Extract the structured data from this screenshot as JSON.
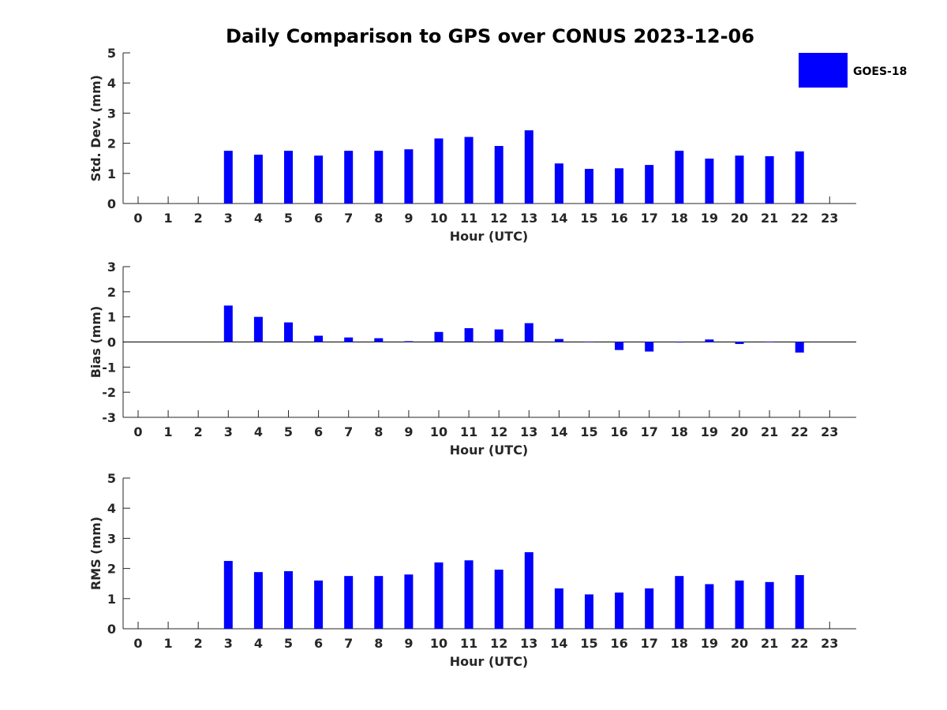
{
  "title": "Daily Comparison to GPS over CONUS 2023-12-06",
  "legend": {
    "label": "GOES-18",
    "color": "#0000ff"
  },
  "chart_data": [
    {
      "type": "bar",
      "name": "std-dev",
      "xlabel": "Hour (UTC)",
      "ylabel": "Std. Dev. (mm)",
      "ylim": [
        0,
        5
      ],
      "yticks": [
        0,
        1,
        2,
        3,
        4,
        5
      ],
      "categories": [
        0,
        1,
        2,
        3,
        4,
        5,
        6,
        7,
        8,
        9,
        10,
        11,
        12,
        13,
        14,
        15,
        16,
        17,
        18,
        19,
        20,
        21,
        22,
        23
      ],
      "series": [
        {
          "name": "GOES-18",
          "color": "#0000ff",
          "values": [
            null,
            null,
            null,
            1.75,
            1.62,
            1.75,
            1.59,
            1.75,
            1.75,
            1.8,
            2.16,
            2.21,
            1.91,
            2.43,
            1.33,
            1.15,
            1.17,
            1.28,
            1.75,
            1.49,
            1.59,
            1.57,
            1.73,
            null
          ]
        }
      ]
    },
    {
      "type": "bar",
      "name": "bias",
      "xlabel": "Hour (UTC)",
      "ylabel": "Bias (mm)",
      "ylim": [
        -3,
        3
      ],
      "yticks": [
        -3,
        -2,
        -1,
        0,
        1,
        2,
        3
      ],
      "categories": [
        0,
        1,
        2,
        3,
        4,
        5,
        6,
        7,
        8,
        9,
        10,
        11,
        12,
        13,
        14,
        15,
        16,
        17,
        18,
        19,
        20,
        21,
        22,
        23
      ],
      "series": [
        {
          "name": "GOES-18",
          "color": "#0000ff",
          "values": [
            null,
            null,
            null,
            1.45,
            1.0,
            0.78,
            0.25,
            0.18,
            0.15,
            0.03,
            0.4,
            0.55,
            0.5,
            0.75,
            0.12,
            0.0,
            -0.32,
            -0.38,
            -0.02,
            0.1,
            -0.08,
            0.0,
            -0.42,
            null
          ]
        }
      ]
    },
    {
      "type": "bar",
      "name": "rms",
      "xlabel": "Hour (UTC)",
      "ylabel": "RMS (mm)",
      "ylim": [
        0,
        5
      ],
      "yticks": [
        0,
        1,
        2,
        3,
        4,
        5
      ],
      "categories": [
        0,
        1,
        2,
        3,
        4,
        5,
        6,
        7,
        8,
        9,
        10,
        11,
        12,
        13,
        14,
        15,
        16,
        17,
        18,
        19,
        20,
        21,
        22,
        23
      ],
      "series": [
        {
          "name": "GOES-18",
          "color": "#0000ff",
          "values": [
            null,
            null,
            null,
            2.25,
            1.88,
            1.91,
            1.6,
            1.75,
            1.75,
            1.8,
            2.2,
            2.27,
            1.96,
            2.54,
            1.34,
            1.14,
            1.2,
            1.34,
            1.75,
            1.48,
            1.6,
            1.55,
            1.78,
            null
          ]
        }
      ]
    }
  ]
}
